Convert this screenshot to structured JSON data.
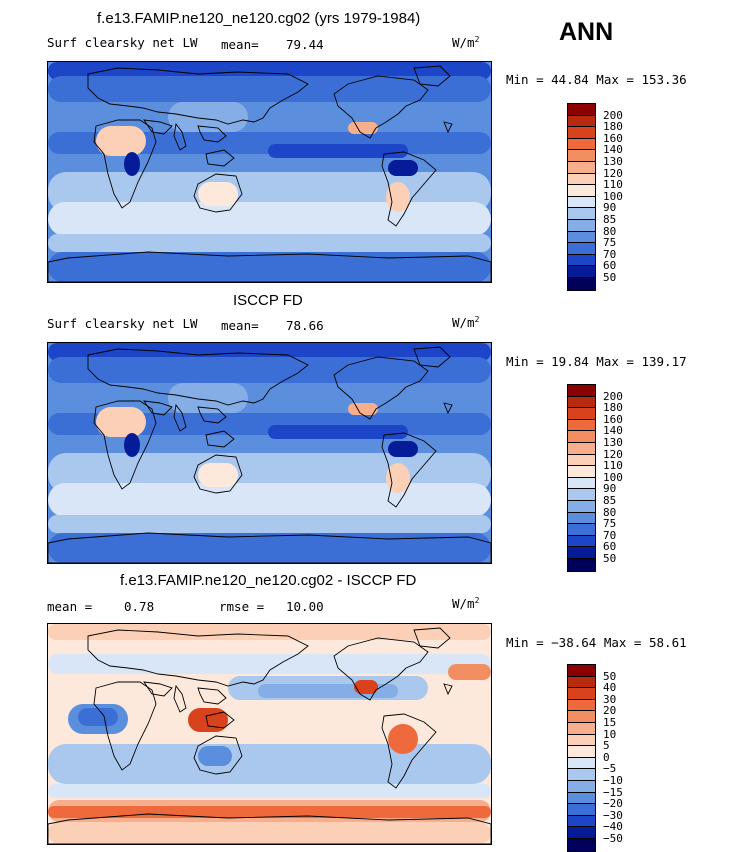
{
  "season": "ANN",
  "panels": [
    {
      "title": "f.e13.FAMIP.ne120_ne120.cg02 (yrs 1979-1984)",
      "left_label": "Surf clearsky net LW",
      "stat_label": "mean=",
      "stat_value": "79.44",
      "second_stat_label": "",
      "second_stat_value": "",
      "units": "W/m",
      "units_sup": "2",
      "min_max": "Min =  44.84 Max = 153.36",
      "colorbar_levels": [
        "200",
        "180",
        "160",
        "140",
        "130",
        "120",
        "110",
        "100",
        "90",
        "85",
        "80",
        "75",
        "70",
        "60",
        "50"
      ],
      "colorbar_colors": [
        "#8b0000",
        "#b82a10",
        "#d8431d",
        "#ee6a3c",
        "#f38e63",
        "#f7ae8d",
        "#fbd0b6",
        "#fde9dc",
        "#d9e6f7",
        "#aac8ee",
        "#86aee6",
        "#5b8fde",
        "#3c6fd6",
        "#1d45c8",
        "#061b98",
        "#00005a"
      ],
      "map_palette": "absolute"
    },
    {
      "title": "ISCCP FD",
      "left_label": "Surf clearsky net LW",
      "stat_label": "mean=",
      "stat_value": "78.66",
      "second_stat_label": "",
      "second_stat_value": "",
      "units": "W/m",
      "units_sup": "2",
      "min_max": "Min =  19.84 Max = 139.17",
      "colorbar_levels": [
        "200",
        "180",
        "160",
        "140",
        "130",
        "120",
        "110",
        "100",
        "90",
        "85",
        "80",
        "75",
        "70",
        "60",
        "50"
      ],
      "colorbar_colors": [
        "#8b0000",
        "#b82a10",
        "#d8431d",
        "#ee6a3c",
        "#f38e63",
        "#f7ae8d",
        "#fbd0b6",
        "#fde9dc",
        "#d9e6f7",
        "#aac8ee",
        "#86aee6",
        "#5b8fde",
        "#3c6fd6",
        "#1d45c8",
        "#061b98",
        "#00005a"
      ],
      "map_palette": "absolute"
    },
    {
      "title": "f.e13.FAMIP.ne120_ne120.cg02 - ISCCP FD",
      "left_label": "mean =",
      "stat_label": "",
      "stat_value": "0.78",
      "second_stat_label": "rmse =",
      "second_stat_value": "10.00",
      "units": "W/m",
      "units_sup": "2",
      "min_max": "Min = −38.64 Max =  58.61",
      "colorbar_levels": [
        "50",
        "40",
        "30",
        "20",
        "15",
        "10",
        "5",
        "0",
        "−5",
        "−10",
        "−15",
        "−20",
        "−30",
        "−40",
        "−50"
      ],
      "colorbar_colors": [
        "#8b0000",
        "#b82a10",
        "#d8431d",
        "#ee6a3c",
        "#f38e63",
        "#f7ae8d",
        "#fbd0b6",
        "#fde9dc",
        "#d9e6f7",
        "#aac8ee",
        "#86aee6",
        "#5b8fde",
        "#3c6fd6",
        "#1d45c8",
        "#061b98",
        "#00005a"
      ],
      "map_palette": "difference"
    }
  ]
}
